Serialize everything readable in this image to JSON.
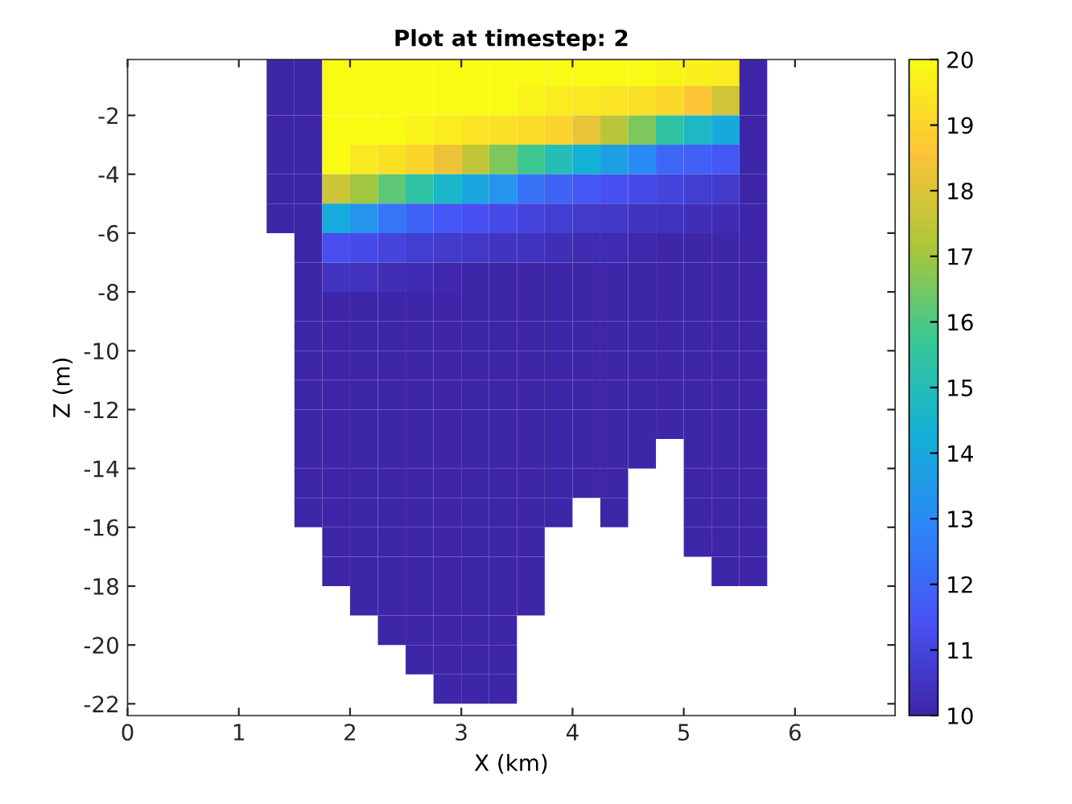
{
  "chart_data": {
    "type": "heatmap",
    "title": "Plot at timestep: 2",
    "xlabel": "X (km)",
    "ylabel": "Z (m)",
    "x": [
      1.375,
      1.625,
      1.875,
      2.125,
      2.375,
      2.625,
      2.875,
      3.125,
      3.375,
      3.625,
      3.875,
      4.125,
      4.375,
      4.625,
      4.875,
      5.125,
      5.375,
      5.625
    ],
    "y": [
      -0.5,
      -1.5,
      -2.5,
      -3.5,
      -4.5,
      -5.5,
      -6.5,
      -7.5,
      -8.5,
      -9.5,
      -10.5,
      -11.5,
      -12.5,
      -13.5,
      -14.5,
      -15.5,
      -16.5,
      -17.5,
      -18.5,
      -19.5,
      -20.5,
      -21.5
    ],
    "cells": [
      [
        10,
        10,
        20,
        20,
        20,
        20,
        20,
        20,
        20,
        20,
        20,
        20,
        20,
        20,
        19.8,
        19.7,
        19.6,
        10
      ],
      [
        10,
        10,
        20,
        20,
        20,
        20,
        20,
        20,
        20,
        19.8,
        19.6,
        19.5,
        19.4,
        19.3,
        19.1,
        18.6,
        17.8,
        10
      ],
      [
        10,
        10,
        20,
        20,
        20,
        19.8,
        19.6,
        19.4,
        19.3,
        19.2,
        19,
        18.2,
        17.4,
        16.6,
        15.4,
        14.7,
        14,
        10
      ],
      [
        10,
        10,
        20,
        19.5,
        19.3,
        19,
        18.3,
        17.5,
        16.6,
        15.8,
        15,
        14.3,
        13.7,
        13,
        12,
        11.8,
        11.6,
        10
      ],
      [
        10,
        10,
        17.7,
        17,
        16.2,
        15.4,
        14.6,
        13.9,
        13.3,
        12.3,
        11.9,
        11.6,
        11.4,
        11.2,
        11,
        10.8,
        10.7,
        10
      ],
      [
        10,
        10,
        14.1,
        13.3,
        12.4,
        11.9,
        11.6,
        11.4,
        11.2,
        11,
        10.8,
        10.7,
        10.6,
        10.5,
        10.4,
        10.3,
        10.2,
        10
      ],
      [
        null,
        10,
        11.3,
        11.2,
        11,
        10.8,
        10.7,
        10.6,
        10.5,
        10.4,
        10.3,
        10.2,
        10.2,
        10.1,
        10,
        10,
        10,
        10
      ],
      [
        null,
        10,
        10.5,
        10.4,
        10.3,
        10.2,
        10.1,
        10,
        10,
        10,
        10,
        10,
        10,
        10,
        10,
        10,
        10,
        10
      ],
      [
        null,
        10,
        10,
        10,
        10,
        10,
        10,
        10,
        10,
        10,
        10,
        10,
        10,
        10,
        10,
        10,
        10,
        10
      ],
      [
        null,
        10,
        10,
        10,
        10,
        10,
        10,
        10,
        10,
        10,
        10,
        10,
        10,
        10,
        10,
        10,
        10,
        10
      ],
      [
        null,
        10,
        10,
        10,
        10,
        10,
        10,
        10,
        10,
        10,
        10,
        10,
        10,
        10,
        10,
        10,
        10,
        10
      ],
      [
        null,
        10,
        10,
        10,
        10,
        10,
        10,
        10,
        10,
        10,
        10,
        10,
        10,
        10,
        10,
        10,
        10,
        10
      ],
      [
        null,
        10,
        10,
        10,
        10,
        10,
        10,
        10,
        10,
        10,
        10,
        10,
        10,
        10,
        10,
        10,
        10,
        10
      ],
      [
        null,
        10,
        10,
        10,
        10,
        10,
        10,
        10,
        10,
        10,
        10,
        10,
        10,
        10,
        null,
        10,
        10,
        10
      ],
      [
        null,
        10,
        10,
        10,
        10,
        10,
        10,
        10,
        10,
        10,
        10,
        10,
        10,
        null,
        null,
        10,
        10,
        10
      ],
      [
        null,
        10,
        10,
        10,
        10,
        10,
        10,
        10,
        10,
        10,
        10,
        null,
        10,
        null,
        null,
        10,
        10,
        10
      ],
      [
        null,
        null,
        10,
        10,
        10,
        10,
        10,
        10,
        10,
        10,
        null,
        null,
        null,
        null,
        null,
        10,
        10,
        10
      ],
      [
        null,
        null,
        10,
        10,
        10,
        10,
        10,
        10,
        10,
        10,
        null,
        null,
        null,
        null,
        null,
        null,
        10,
        10
      ],
      [
        null,
        null,
        null,
        10,
        10,
        10,
        10,
        10,
        10,
        10,
        null,
        null,
        null,
        null,
        null,
        null,
        null,
        null
      ],
      [
        null,
        null,
        null,
        null,
        10,
        10,
        10,
        10,
        10,
        null,
        null,
        null,
        null,
        null,
        null,
        null,
        null,
        null
      ],
      [
        null,
        null,
        null,
        null,
        null,
        10,
        10,
        10,
        10,
        null,
        null,
        null,
        null,
        null,
        null,
        null,
        null,
        null
      ],
      [
        null,
        null,
        null,
        null,
        null,
        null,
        10,
        10,
        10,
        null,
        null,
        null,
        null,
        null,
        null,
        null,
        null,
        null
      ]
    ],
    "colors": [
      "#3e26a8",
      "#4852f4",
      "#2d87f7",
      "#12b1d6",
      "#37c897",
      "#abc739",
      "#fcc337",
      "#f9fb15"
    ],
    "xlim": [
      0,
      6.9
    ],
    "ylim": [
      -22.4,
      -0.1
    ],
    "xticks": [
      0,
      1,
      2,
      3,
      4,
      5,
      6
    ],
    "yticks": [
      -22,
      -20,
      -18,
      -16,
      -14,
      -12,
      -10,
      -8,
      -6,
      -4,
      -2
    ],
    "clim": [
      10,
      20
    ],
    "cticks": [
      10,
      11,
      12,
      13,
      14,
      15,
      16,
      17,
      18,
      19,
      20
    ]
  }
}
